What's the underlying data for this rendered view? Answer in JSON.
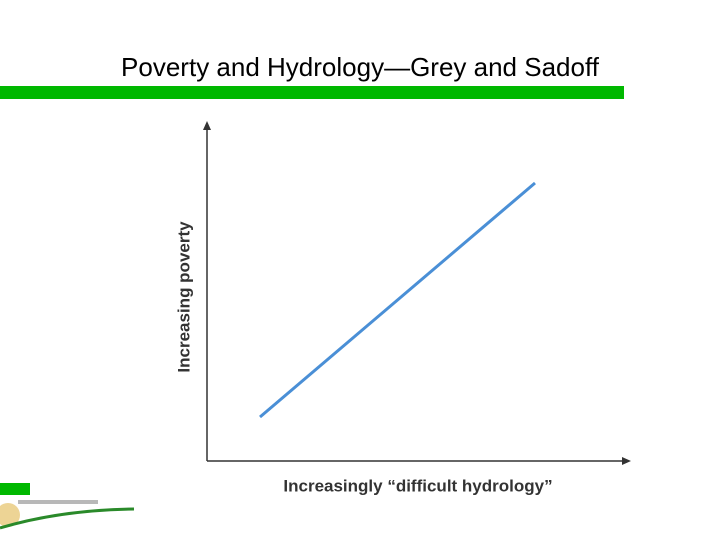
{
  "slide": {
    "title": "Poverty and Hydrology—Grey and Sadoff",
    "figure": {
      "y_axis_label": "Increasing poverty",
      "x_axis_label": "Increasingly “difficult hydrology”"
    }
  }
}
